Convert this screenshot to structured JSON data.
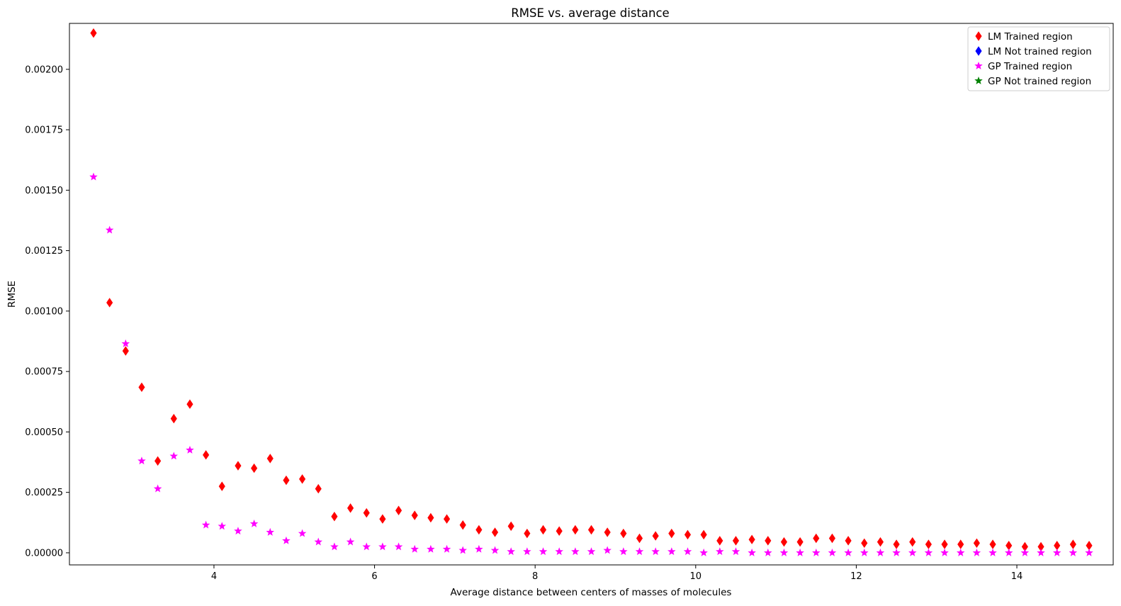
{
  "chart_data": {
    "type": "scatter",
    "title": "RMSE vs. average distance",
    "xlabel": "Average distance between centers of masses of molecules",
    "ylabel": "RMSE",
    "xlim": [
      2.2,
      15.2
    ],
    "ylim": [
      -5e-05,
      0.00219
    ],
    "xticks": [
      4,
      6,
      8,
      10,
      12,
      14
    ],
    "xtick_labels": [
      "4",
      "6",
      "8",
      "10",
      "12",
      "14"
    ],
    "yticks": [
      0,
      0.00025,
      0.0005,
      0.00075,
      0.001,
      0.00125,
      0.0015,
      0.00175,
      0.002
    ],
    "ytick_labels": [
      "0.00000",
      "0.00025",
      "0.00050",
      "0.00075",
      "0.00100",
      "0.00125",
      "0.00150",
      "0.00175",
      "0.00200"
    ],
    "grid": false,
    "legend_position": "top-right",
    "x": [
      2.5,
      2.7,
      2.9,
      3.1,
      3.3,
      3.5,
      3.7,
      3.9,
      4.1,
      4.3,
      4.5,
      4.7,
      4.9,
      5.1,
      5.3,
      5.5,
      5.7,
      5.9,
      6.1,
      6.3,
      6.5,
      6.7,
      6.9,
      7.1,
      7.3,
      7.5,
      7.7,
      7.9,
      8.1,
      8.3,
      8.5,
      8.7,
      8.9,
      9.1,
      9.3,
      9.5,
      9.7,
      9.9,
      10.1,
      10.3,
      10.5,
      10.7,
      10.9,
      11.1,
      11.3,
      11.5,
      11.7,
      11.9,
      12.1,
      12.3,
      12.5,
      12.7,
      12.9,
      13.1,
      13.3,
      13.5,
      13.7,
      13.9,
      14.1,
      14.3,
      14.5,
      14.7,
      14.9
    ],
    "series": [
      {
        "name": "LM Trained region",
        "marker": "diamond",
        "color": "#ff0000",
        "values": [
          0.00215,
          0.001035,
          0.000835,
          0.000685,
          0.00038,
          0.000555,
          0.000615,
          0.000405,
          0.000275,
          0.00036,
          0.00035,
          0.00039,
          0.0003,
          0.000305,
          0.000265,
          0.00015,
          0.000185,
          0.000165,
          0.00014,
          0.000175,
          0.000155,
          0.000145,
          0.00014,
          0.000115,
          9.5e-05,
          8.5e-05,
          0.00011,
          8e-05,
          9.5e-05,
          9e-05,
          9.5e-05,
          9.5e-05,
          8.5e-05,
          8e-05,
          6e-05,
          7e-05,
          8e-05,
          7.5e-05,
          7.5e-05,
          5e-05,
          5e-05,
          5.5e-05,
          5e-05,
          4.5e-05,
          4.5e-05,
          6e-05,
          6e-05,
          5e-05,
          4e-05,
          4.5e-05,
          3.5e-05,
          4.5e-05,
          3.5e-05,
          3.5e-05,
          3.5e-05,
          4e-05,
          3.5e-05,
          3e-05,
          2.5e-05,
          2.5e-05,
          3e-05,
          3.5e-05,
          3e-05
        ]
      },
      {
        "name": "LM Not trained region",
        "marker": "diamond",
        "color": "#0000ff",
        "values": []
      },
      {
        "name": "GP Trained region",
        "marker": "star",
        "color": "#ff00ff",
        "values": [
          0.001555,
          0.001335,
          0.000865,
          0.00038,
          0.000265,
          0.0004,
          0.000425,
          0.000115,
          0.00011,
          9e-05,
          0.00012,
          8.5e-05,
          5e-05,
          8e-05,
          4.5e-05,
          2.5e-05,
          4.5e-05,
          2.5e-05,
          2.5e-05,
          2.5e-05,
          1.5e-05,
          1.5e-05,
          1.5e-05,
          1e-05,
          1.5e-05,
          1e-05,
          5e-06,
          5e-06,
          5e-06,
          5e-06,
          5e-06,
          5e-06,
          1e-05,
          5e-06,
          5e-06,
          5e-06,
          5e-06,
          5e-06,
          0.0,
          5e-06,
          5e-06,
          0.0,
          0.0,
          0.0,
          0.0,
          0.0,
          0.0,
          0.0,
          0.0,
          0.0,
          0.0,
          0.0,
          0.0,
          0.0,
          0.0,
          0.0,
          0.0,
          0.0,
          0.0,
          0.0,
          0.0,
          0.0,
          0.0
        ]
      },
      {
        "name": "GP Not trained region",
        "marker": "star",
        "color": "#008000",
        "values": []
      }
    ]
  }
}
